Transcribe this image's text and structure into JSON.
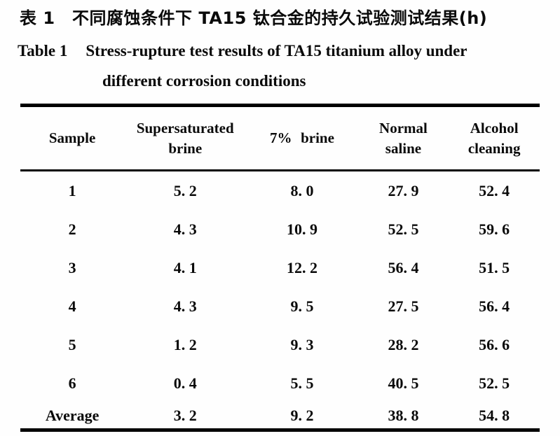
{
  "page": {
    "background": "#fefefe",
    "text_color": "#0a0a0a",
    "rule_color": "#000000"
  },
  "titles": {
    "chinese": "表 1　不同腐蚀条件下 TA15 钛合金的持久试验测试结果(h)",
    "english_label": "Table 1",
    "english_line1": "Stress-rupture test results of TA15 titanium alloy under",
    "english_line2": "different corrosion conditions"
  },
  "table": {
    "headers": [
      {
        "lines": [
          "Sample"
        ]
      },
      {
        "lines": [
          "Supersaturated",
          "brine"
        ]
      },
      {
        "lines": [
          "7% brine"
        ]
      },
      {
        "lines": [
          "Normal",
          "saline"
        ]
      },
      {
        "lines": [
          "Alcohol",
          "cleaning"
        ]
      }
    ],
    "rows": [
      {
        "sample": "1",
        "values": [
          "5. 2",
          "8. 0",
          "27. 9",
          "52. 4"
        ],
        "is_average": false
      },
      {
        "sample": "2",
        "values": [
          "4. 3",
          "10. 9",
          "52. 5",
          "59. 6"
        ],
        "is_average": false
      },
      {
        "sample": "3",
        "values": [
          "4. 1",
          "12. 2",
          "56. 4",
          "51. 5"
        ],
        "is_average": false
      },
      {
        "sample": "4",
        "values": [
          "4. 3",
          "9. 5",
          "27. 5",
          "56. 4"
        ],
        "is_average": false
      },
      {
        "sample": "5",
        "values": [
          "1. 2",
          "9. 3",
          "28. 2",
          "56. 6"
        ],
        "is_average": false
      },
      {
        "sample": "6",
        "values": [
          "0. 4",
          "5. 5",
          "40. 5",
          "52. 5"
        ],
        "is_average": false
      },
      {
        "sample": "Average",
        "values": [
          "3. 2",
          "9. 2",
          "38. 8",
          "54. 8"
        ],
        "is_average": true
      }
    ]
  },
  "chart_data": {
    "type": "table",
    "title": "表1 不同腐蚀条件下TA15钛合金的持久试验测试结果(h)",
    "title_en": "Table 1 Stress-rupture test results of TA15 titanium alloy under different corrosion conditions",
    "unit": "h",
    "columns": [
      "Sample",
      "Supersaturated brine",
      "7% brine",
      "Normal saline",
      "Alcohol cleaning"
    ],
    "rows": [
      [
        "1",
        5.2,
        8.0,
        27.9,
        52.4
      ],
      [
        "2",
        4.3,
        10.9,
        52.5,
        59.6
      ],
      [
        "3",
        4.1,
        12.2,
        56.4,
        51.5
      ],
      [
        "4",
        4.3,
        9.5,
        27.5,
        56.4
      ],
      [
        "5",
        1.2,
        9.3,
        28.2,
        56.6
      ],
      [
        "6",
        0.4,
        5.5,
        40.5,
        52.5
      ],
      [
        "Average",
        3.2,
        9.2,
        38.8,
        54.8
      ]
    ]
  }
}
